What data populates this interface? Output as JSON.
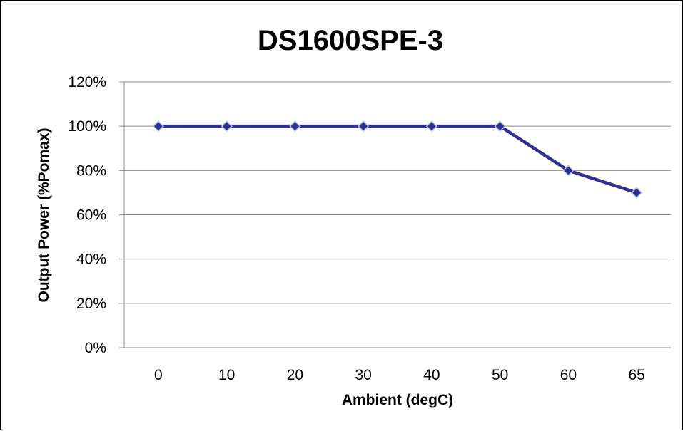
{
  "chart_data": {
    "type": "line",
    "title": "DS1600SPE-3",
    "xlabel": "Ambient (degC)",
    "ylabel": "Output Power (%Pomax)",
    "categories": [
      "0",
      "10",
      "20",
      "30",
      "40",
      "50",
      "60",
      "65"
    ],
    "series": [
      {
        "values": [
          100,
          100,
          100,
          100,
          100,
          100,
          80,
          70
        ],
        "color": "#2E3192",
        "marker": "diamond",
        "marker_fill": "#2E3192",
        "marker_stroke": "#B4C7E7"
      }
    ],
    "ylim": [
      0,
      120
    ],
    "y_ticks": [
      0,
      20,
      40,
      60,
      80,
      100,
      120
    ],
    "y_tick_labels": [
      "0%",
      "20%",
      "40%",
      "60%",
      "80%",
      "100%",
      "120%"
    ],
    "grid": true,
    "legend": "none"
  }
}
